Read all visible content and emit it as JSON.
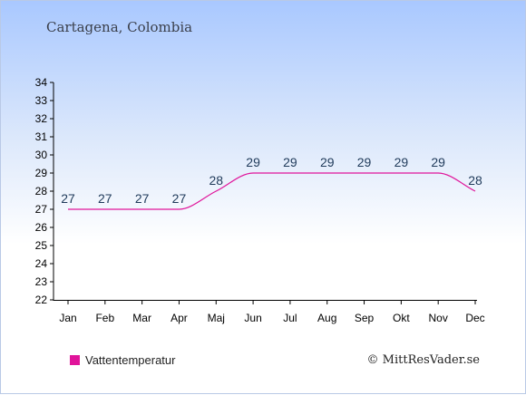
{
  "title": "Cartagena, Colombia",
  "credit": "© MittResVader.se",
  "chart_data": {
    "type": "line",
    "categories": [
      "Jan",
      "Feb",
      "Mar",
      "Apr",
      "Maj",
      "Jun",
      "Jul",
      "Aug",
      "Sep",
      "Okt",
      "Nov",
      "Dec"
    ],
    "series": [
      {
        "name": "Vattentemperatur",
        "values": [
          27,
          27,
          27,
          27,
          28,
          29,
          29,
          29,
          29,
          29,
          29,
          28
        ],
        "color": "#e0149a"
      }
    ],
    "ylim": [
      22,
      34
    ],
    "yticks": [
      22,
      23,
      24,
      25,
      26,
      27,
      28,
      29,
      30,
      31,
      32,
      33,
      34
    ],
    "grid": false,
    "legend": "bottom-left",
    "label_color": "#1f3a5a"
  }
}
